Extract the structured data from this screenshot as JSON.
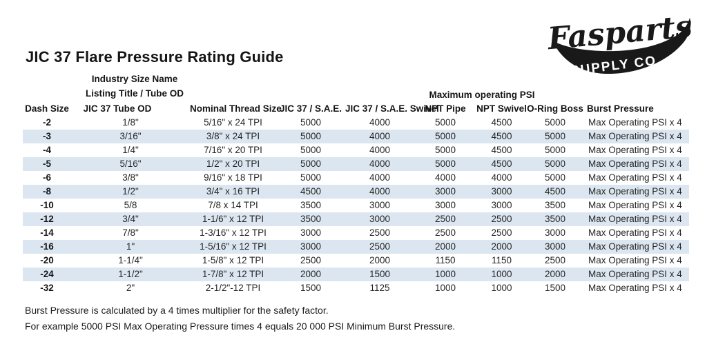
{
  "page": {
    "title": "JIC 37 Flare Pressure Rating Guide",
    "logo": {
      "brand": "Fasparts",
      "subtitle": "SUPPLY CO.",
      "color": "#191919"
    },
    "footer_lines": [
      "Burst Pressure is calculated by a 4 times multiplier for the safety factor.",
      "For example 5000 PSI Max Operating Pressure times 4 equals 20 000 PSI Minimum Burst Pressure."
    ]
  },
  "table": {
    "group_headers": {
      "industry_line1": "Industry Size Name",
      "industry_line2": "Listing Title / Tube OD",
      "max_psi": "Maximum operating PSI"
    },
    "columns": [
      "Dash Size",
      "JIC 37 Tube OD",
      "Nominal Thread Size",
      "JIC 37 / S.A.E.",
      "JIC 37 / S.A.E. Swivel",
      "NPT Pipe",
      "NPT Swivel",
      "O-Ring Boss",
      "Burst Pressure"
    ],
    "stripe_color": "#dce6f1",
    "rows": [
      [
        "-2",
        "1/8\"",
        "5/16\" x 24 TPI",
        "5000",
        "4000",
        "5000",
        "4500",
        "5000",
        "Max Operating PSI x 4"
      ],
      [
        "-3",
        "3/16\"",
        "3/8\" x 24 TPI",
        "5000",
        "4000",
        "5000",
        "4500",
        "5000",
        "Max Operating PSI x 4"
      ],
      [
        "-4",
        "1/4\"",
        "7/16\" x 20 TPI",
        "5000",
        "4000",
        "5000",
        "4500",
        "5000",
        "Max Operating PSI x 4"
      ],
      [
        "-5",
        "5/16\"",
        "1/2\" x 20 TPI",
        "5000",
        "4000",
        "5000",
        "4500",
        "5000",
        "Max Operating PSI x 4"
      ],
      [
        "-6",
        "3/8\"",
        "9/16\" x 18 TPI",
        "5000",
        "4000",
        "4000",
        "4000",
        "5000",
        "Max Operating PSI x 4"
      ],
      [
        "-8",
        "1/2\"",
        "3/4\" x 16 TPI",
        "4500",
        "4000",
        "3000",
        "3000",
        "4500",
        "Max Operating PSI x 4"
      ],
      [
        "-10",
        "5/8",
        "7/8 x 14 TPI",
        "3500",
        "3000",
        "3000",
        "3000",
        "3500",
        "Max Operating PSI x 4"
      ],
      [
        "-12",
        "3/4\"",
        "1-1/6\" x 12 TPI",
        "3500",
        "3000",
        "2500",
        "2500",
        "3500",
        "Max Operating PSI x 4"
      ],
      [
        "-14",
        "7/8\"",
        "1-3/16\" x 12 TPI",
        "3000",
        "2500",
        "2500",
        "2500",
        "3000",
        "Max Operating PSI x 4"
      ],
      [
        "-16",
        "1\"",
        "1-5/16\" x 12 TPI",
        "3000",
        "2500",
        "2000",
        "2000",
        "3000",
        "Max Operating PSI x 4"
      ],
      [
        "-20",
        "1-1/4\"",
        "1-5/8\" x 12 TPI",
        "2500",
        "2000",
        "1150",
        "1150",
        "2500",
        "Max Operating PSI x 4"
      ],
      [
        "-24",
        "1-1/2\"",
        "1-7/8\" x 12 TPI",
        "2000",
        "1500",
        "1000",
        "1000",
        "2000",
        "Max Operating PSI x 4"
      ],
      [
        "-32",
        "2\"",
        "2-1/2\"-12 TPI",
        "1500",
        "1125",
        "1000",
        "1000",
        "1500",
        "Max Operating PSI x 4"
      ]
    ]
  }
}
